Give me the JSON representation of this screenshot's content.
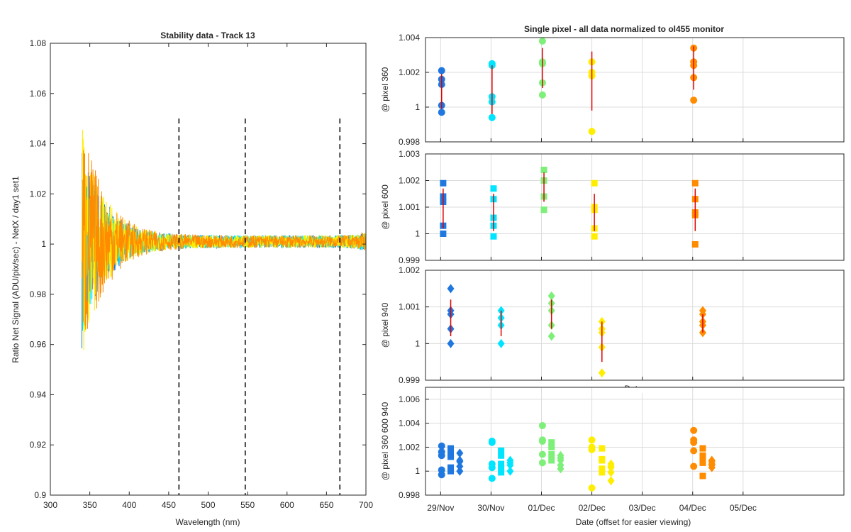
{
  "chart_data": [
    {
      "type": "line",
      "title": "Stability data - Track 13",
      "xlabel": "Wavelength (nm)",
      "ylabel": "Ratio Net Signal (ADU/pix/sec) - NetX / day1 set1",
      "xlim": [
        300,
        700
      ],
      "ylim": [
        0.9,
        1.08
      ],
      "xticks": [
        "300",
        "350",
        "400",
        "450",
        "500",
        "550",
        "600",
        "650",
        "700"
      ],
      "yticks": [
        "0.9",
        "0.92",
        "0.94",
        "0.96",
        "0.98",
        "1",
        "1.02",
        "1.04",
        "1.06",
        "1.08"
      ],
      "grid": false,
      "wavelength_range": [
        340,
        700
      ],
      "vlines": [
        {
          "x": 463,
          "y_top": 1.05
        },
        {
          "x": 547,
          "y_top": 1.05
        },
        {
          "x": 667,
          "y_top": 1.05
        }
      ],
      "series": [
        {
          "color": "#1f78e0",
          "peak_noise": 0.04
        },
        {
          "color": "#00e5ff",
          "peak_noise": 0.035
        },
        {
          "color": "#7ef07a",
          "peak_noise": 0.035
        },
        {
          "color": "#ffee00",
          "peak_noise": 0.045
        },
        {
          "color": "#ff8c00",
          "peak_noise": 0.05
        }
      ]
    },
    {
      "type": "scatter",
      "title": "Single pixel - all data normalized to ol455 monitor",
      "xlabel": "Date (offset for easier viewing)",
      "xlim": [
        -0.3,
        8.0
      ],
      "xticks": [
        "29/Nov",
        "30/Nov",
        "01/Dec",
        "02/Dec",
        "03/Dec",
        "04/Dec",
        "05/Dec"
      ],
      "grid": true,
      "day_colors": [
        "#1f78e0",
        "#00e5ff",
        "#7ef07a",
        "#ffee00",
        "#ff8c00"
      ],
      "panels": [
        {
          "ylabel": "@ pixel 360",
          "marker": "circle",
          "ylim": [
            0.998,
            1.004
          ],
          "yticks": [
            "0.998",
            "1",
            "1.002",
            "1.004"
          ],
          "groups": [
            {
              "x": 0.02,
              "values": [
                1.0021,
                1.0016,
                1.0013,
                1.0001,
                0.9997
              ],
              "bar": [
                0.9999,
                1.0019
              ]
            },
            {
              "x": 1.02,
              "values": [
                1.0025,
                1.0024,
                1.0006,
                1.0003,
                0.9994
              ],
              "bar": [
                0.9996,
                1.0024
              ]
            },
            {
              "x": 2.02,
              "values": [
                1.0038,
                1.0026,
                1.0025,
                1.0014,
                1.0007
              ],
              "bar": [
                1.0011,
                1.0034
              ]
            },
            {
              "x": 3.0,
              "values": [
                1.0026,
                1.002,
                1.0018,
                0.9986
              ],
              "bar": [
                0.9998,
                1.0032
              ]
            },
            {
              "x": 5.02,
              "values": [
                1.0034,
                1.0026,
                1.0024,
                1.0017,
                1.0004
              ],
              "bar": [
                1.001,
                1.0035
              ]
            }
          ]
        },
        {
          "ylabel": "@ pixel 600",
          "marker": "square",
          "ylim": [
            0.999,
            1.003
          ],
          "yticks": [
            "0.999",
            "1",
            "1.001",
            "1.002",
            "1.003"
          ],
          "groups": [
            {
              "x": 0.05,
              "values": [
                1.0019,
                1.0014,
                1.0012,
                1.0003,
                1.0
              ],
              "bar": [
                1.0002,
                1.0017
              ]
            },
            {
              "x": 1.05,
              "values": [
                1.0017,
                1.0013,
                1.0006,
                1.0003,
                0.9999
              ],
              "bar": [
                1.0001,
                1.0015
              ]
            },
            {
              "x": 2.05,
              "values": [
                1.0024,
                1.002,
                1.0014,
                1.0009
              ],
              "bar": [
                1.0012,
                1.0023
              ]
            },
            {
              "x": 3.05,
              "values": [
                1.0019,
                1.001,
                1.0009,
                1.0002,
                0.9999
              ],
              "bar": [
                1.0001,
                1.0015
              ]
            },
            {
              "x": 5.05,
              "values": [
                1.0019,
                1.0013,
                1.0008,
                1.0007,
                0.9996
              ],
              "bar": [
                1.0001,
                1.0017
              ]
            }
          ]
        },
        {
          "ylabel": "@ pixel 940",
          "marker": "diamond",
          "ylim": [
            0.999,
            1.002
          ],
          "yticks": [
            "0.999",
            "1",
            "1.001",
            "1.002"
          ],
          "groups": [
            {
              "x": 0.2,
              "values": [
                1.0015,
                1.0009,
                1.0008,
                1.0004,
                1.0
              ],
              "bar": [
                1.0002,
                1.0012
              ]
            },
            {
              "x": 1.2,
              "values": [
                1.0009,
                1.0007,
                1.0005,
                1.0
              ],
              "bar": [
                1.0002,
                1.0009
              ]
            },
            {
              "x": 2.2,
              "values": [
                1.0013,
                1.0011,
                1.0009,
                1.0005,
                1.0002
              ],
              "bar": [
                1.0004,
                1.0012
              ]
            },
            {
              "x": 3.2,
              "values": [
                1.0006,
                1.0004,
                1.0003,
                0.9999,
                0.9992
              ],
              "bar": [
                0.9995,
                1.0006
              ]
            },
            {
              "x": 5.2,
              "values": [
                1.0009,
                1.0008,
                1.0006,
                1.0005,
                1.0003
              ],
              "bar": [
                1.0003,
                1.0008
              ]
            }
          ]
        },
        {
          "ylabel": "@ pixel 360  600  940",
          "ylim": [
            0.998,
            1.007
          ],
          "yticks": [
            "0.998",
            "1",
            "1.002",
            "1.004",
            "1.006"
          ],
          "groups": [
            {
              "x": 0.02,
              "marker": "circle",
              "values": [
                1.0021,
                1.0016,
                1.0013,
                1.0001,
                0.9997
              ]
            },
            {
              "x": 0.2,
              "marker": "square",
              "values": [
                1.0019,
                1.0014,
                1.0012,
                1.0003,
                1.0
              ]
            },
            {
              "x": 0.38,
              "marker": "diamond",
              "values": [
                1.0015,
                1.0009,
                1.0008,
                1.0004,
                1.0
              ]
            },
            {
              "x": 1.02,
              "marker": "circle",
              "values": [
                1.0025,
                1.0024,
                1.0006,
                1.0003,
                0.9994
              ]
            },
            {
              "x": 1.2,
              "marker": "square",
              "values": [
                1.0017,
                1.0013,
                1.0006,
                1.0003,
                0.9999
              ]
            },
            {
              "x": 1.38,
              "marker": "diamond",
              "values": [
                1.0009,
                1.0007,
                1.0005,
                1.0
              ]
            },
            {
              "x": 2.02,
              "marker": "circle",
              "values": [
                1.0038,
                1.0026,
                1.0025,
                1.0014,
                1.0007
              ]
            },
            {
              "x": 2.2,
              "marker": "square",
              "values": [
                1.0024,
                1.002,
                1.0014,
                1.0009
              ]
            },
            {
              "x": 2.38,
              "marker": "diamond",
              "values": [
                1.0013,
                1.0011,
                1.0009,
                1.0005,
                1.0002
              ]
            },
            {
              "x": 3.0,
              "marker": "circle",
              "values": [
                1.0026,
                1.002,
                1.0018,
                0.9986
              ]
            },
            {
              "x": 3.2,
              "marker": "square",
              "values": [
                1.0019,
                1.001,
                1.0009,
                1.0002,
                0.9999
              ]
            },
            {
              "x": 3.38,
              "marker": "diamond",
              "values": [
                1.0006,
                1.0004,
                1.0003,
                0.9999,
                0.9992
              ]
            },
            {
              "x": 5.02,
              "marker": "circle",
              "values": [
                1.0034,
                1.0026,
                1.0024,
                1.0017,
                1.0004
              ]
            },
            {
              "x": 5.2,
              "marker": "square",
              "values": [
                1.0019,
                1.0013,
                1.0008,
                1.0007,
                0.9996
              ]
            },
            {
              "x": 5.38,
              "marker": "diamond",
              "values": [
                1.0009,
                1.0008,
                1.0006,
                1.0005,
                1.0003
              ]
            }
          ]
        }
      ],
      "overlap_text": "Date"
    }
  ]
}
